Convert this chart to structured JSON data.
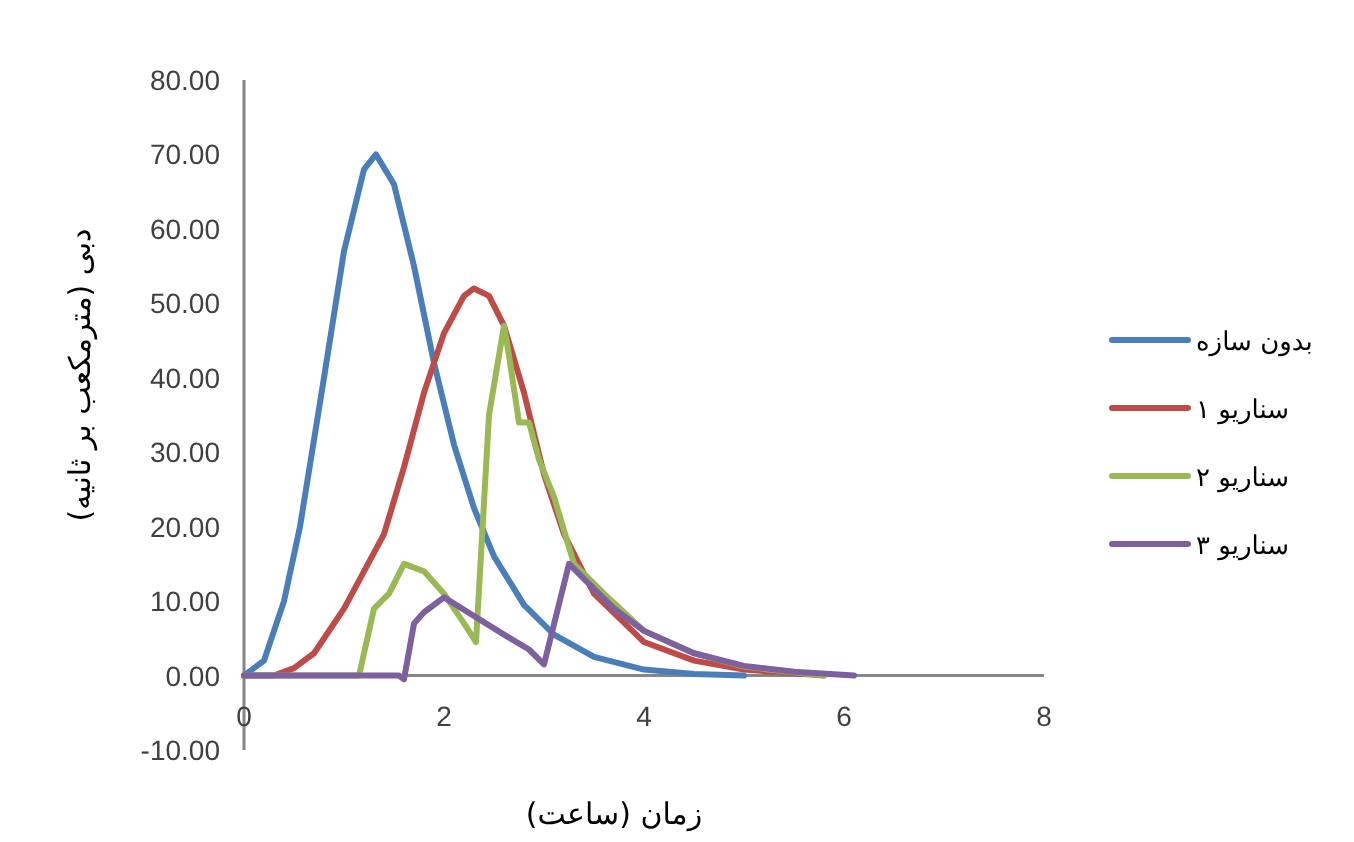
{
  "chart_data": {
    "type": "line",
    "xlabel": "زمان (ساعت)",
    "ylabel": "دبی (مترمکعب بر ثانیه)",
    "xlim": [
      0,
      8
    ],
    "ylim": [
      -10,
      80
    ],
    "xticks": [
      0,
      2,
      4,
      6,
      8
    ],
    "yticks": [
      {
        "value": -10,
        "label": "-10.00"
      },
      {
        "value": 0,
        "label": "0.00"
      },
      {
        "value": 10,
        "label": "10.00"
      },
      {
        "value": 20,
        "label": "20.00"
      },
      {
        "value": 30,
        "label": "30.00"
      },
      {
        "value": 40,
        "label": "40.00"
      },
      {
        "value": 50,
        "label": "50.00"
      },
      {
        "value": 60,
        "label": "60.00"
      },
      {
        "value": 70,
        "label": "70.00"
      },
      {
        "value": 80,
        "label": "80.00"
      }
    ],
    "legend": "right",
    "grid": false,
    "series": [
      {
        "name": "بدون سازه",
        "color": "#4a7ebb",
        "x": [
          0,
          0.2,
          0.4,
          0.56,
          0.8,
          1.0,
          1.2,
          1.32,
          1.5,
          1.7,
          1.9,
          2.1,
          2.3,
          2.5,
          2.8,
          3.1,
          3.5,
          4,
          4.5,
          5.0
        ],
        "values": [
          0,
          2,
          10,
          20,
          40,
          57,
          68,
          70,
          66,
          55,
          42,
          31,
          22.5,
          16,
          9.5,
          5.5,
          2.5,
          0.8,
          0.2,
          0
        ]
      },
      {
        "name": "سناریو ۱",
        "color": "#be4b48",
        "x": [
          0,
          0.3,
          0.5,
          0.7,
          1.0,
          1.2,
          1.4,
          1.6,
          1.8,
          2.0,
          2.2,
          2.3,
          2.45,
          2.6,
          2.8,
          3.0,
          3.2,
          3.5,
          4,
          4.5,
          5,
          5.5,
          5.8
        ],
        "values": [
          0,
          0,
          1,
          3,
          9,
          14,
          19,
          28,
          38,
          46,
          51,
          52,
          51,
          47,
          38,
          27,
          19,
          11,
          4.5,
          2,
          0.8,
          0.3,
          0
        ]
      },
      {
        "name": "سناریو ۲",
        "color": "#98b954",
        "x": [
          0,
          1.15,
          1.3,
          1.45,
          1.6,
          1.8,
          2.0,
          2.2,
          2.32,
          2.45,
          2.6,
          2.65,
          2.75,
          2.85,
          2.95,
          3.1,
          3.3,
          3.6,
          4,
          4.5,
          5,
          5.8
        ],
        "values": [
          0,
          0,
          9,
          11,
          15,
          14,
          11,
          7,
          4.5,
          35,
          47,
          43,
          34,
          34,
          29,
          24,
          15,
          11,
          6,
          3,
          1.2,
          0
        ]
      },
      {
        "name": "سناریو ۳",
        "color": "#7d60a0",
        "x": [
          0,
          1.55,
          1.6,
          1.7,
          1.8,
          2.0,
          2.3,
          2.6,
          2.85,
          3.0,
          3.25,
          3.4,
          3.7,
          4,
          4.5,
          5,
          5.5,
          6.1
        ],
        "values": [
          0,
          0,
          -0.5,
          7,
          8.5,
          10.5,
          8,
          5.5,
          3.5,
          1.5,
          15,
          13,
          9,
          6,
          3,
          1.3,
          0.5,
          0
        ]
      }
    ]
  }
}
